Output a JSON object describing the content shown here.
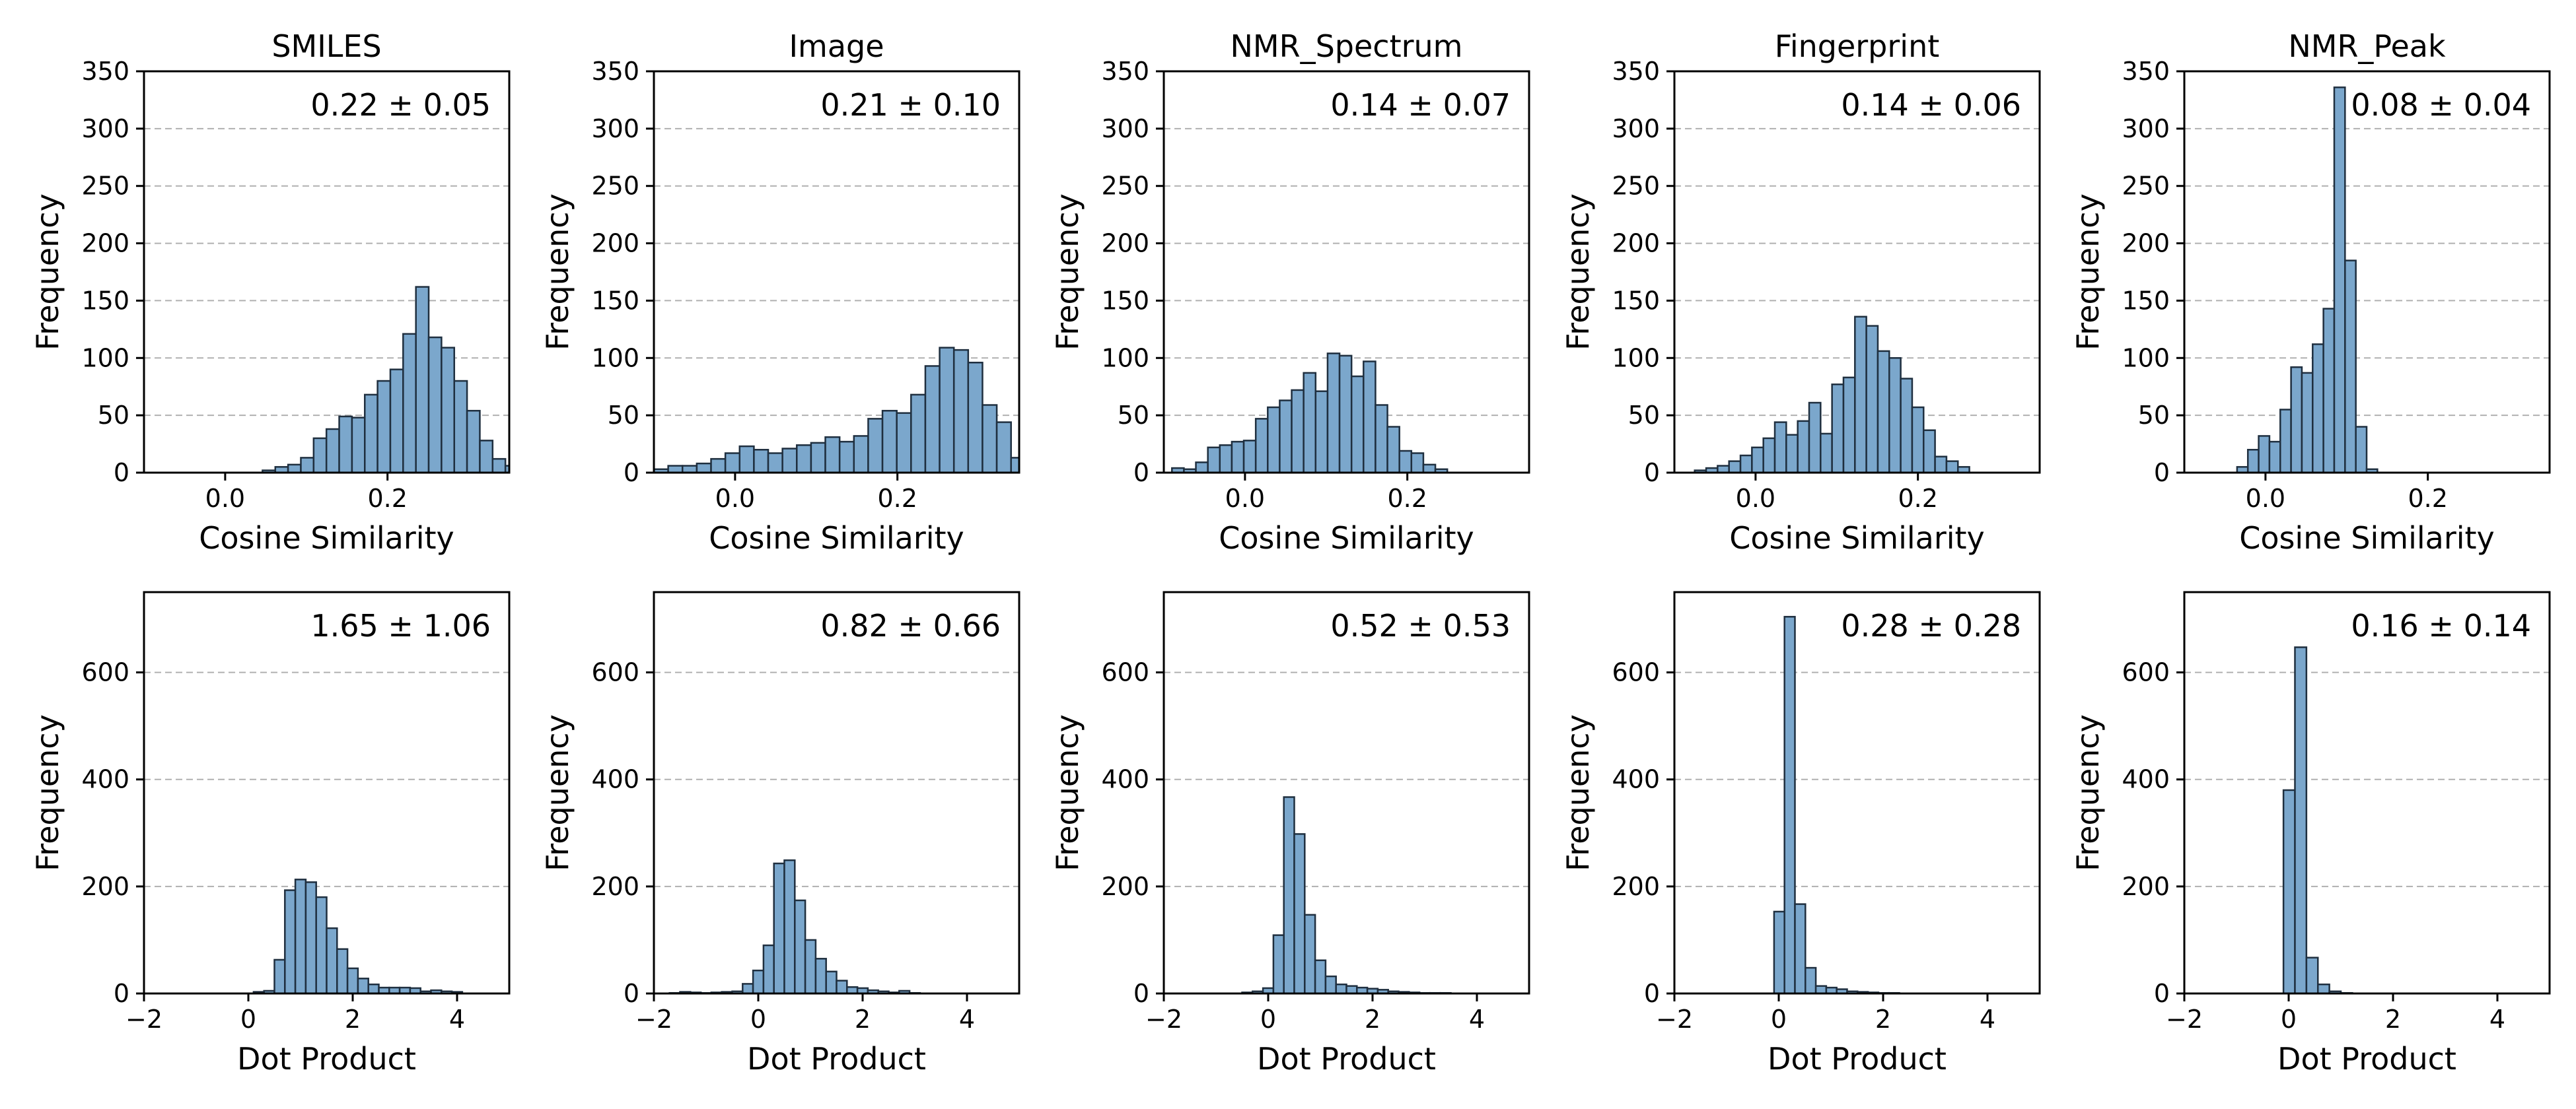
{
  "colors": {
    "bar_fill": "#7ba7cc",
    "bar_edge": "#2b3a4a",
    "grid": "#b0b0b0",
    "background": "#ffffff"
  },
  "chart_data": [
    {
      "type": "bar",
      "row": 0,
      "col": 0,
      "title": "SMILES",
      "xlabel": "Cosine Similarity",
      "ylabel": "Frequency",
      "annotation": "0.22 ± 0.05",
      "xlim": [
        -0.1,
        0.35
      ],
      "ylim": [
        0,
        350
      ],
      "xticks": [
        0.0,
        0.2
      ],
      "xtick_labels": [
        "0.0",
        "0.2"
      ],
      "yticks": [
        0,
        50,
        100,
        150,
        200,
        250,
        300,
        350
      ],
      "ytick_labels": [
        "0",
        "50",
        "100",
        "150",
        "200",
        "250",
        "300",
        "350"
      ],
      "bin_start": 0.046,
      "bin_width": 0.01575,
      "values": [
        2,
        5,
        7,
        13,
        30,
        38,
        49,
        48,
        68,
        80,
        90,
        121,
        162,
        118,
        109,
        80,
        54,
        28,
        12,
        6
      ]
    },
    {
      "type": "bar",
      "row": 0,
      "col": 1,
      "title": "Image",
      "xlabel": "Cosine Similarity",
      "ylabel": "Frequency",
      "annotation": "0.21 ± 0.10",
      "xlim": [
        -0.1,
        0.35
      ],
      "ylim": [
        0,
        350
      ],
      "xticks": [
        0.0,
        0.2
      ],
      "xtick_labels": [
        "0.0",
        "0.2"
      ],
      "yticks": [
        0,
        50,
        100,
        150,
        200,
        250,
        300,
        350
      ],
      "ytick_labels": [
        "0",
        "50",
        "100",
        "150",
        "200",
        "250",
        "300",
        "350"
      ],
      "bin_start": -0.1,
      "bin_width": 0.0176,
      "values": [
        3,
        6,
        6,
        8,
        12,
        17,
        23,
        20,
        17,
        21,
        24,
        26,
        31,
        27,
        32,
        47,
        54,
        52,
        68,
        93,
        109,
        107,
        96,
        59,
        44,
        13
      ]
    },
    {
      "type": "bar",
      "row": 0,
      "col": 2,
      "title": "NMR_Spectrum",
      "xlabel": "Cosine Similarity",
      "ylabel": "Frequency",
      "annotation": "0.14 ± 0.07",
      "xlim": [
        -0.1,
        0.35
      ],
      "ylim": [
        0,
        350
      ],
      "xticks": [
        0.0,
        0.2
      ],
      "xtick_labels": [
        "0.0",
        "0.2"
      ],
      "yticks": [
        0,
        50,
        100,
        150,
        200,
        250,
        300,
        350
      ],
      "ytick_labels": [
        "0",
        "50",
        "100",
        "150",
        "200",
        "250",
        "300",
        "350"
      ],
      "bin_start": -0.09,
      "bin_width": 0.01475,
      "values": [
        4,
        3,
        9,
        22,
        24,
        27,
        28,
        47,
        57,
        63,
        72,
        87,
        71,
        104,
        102,
        84,
        97,
        59,
        40,
        19,
        17,
        7,
        3
      ]
    },
    {
      "type": "bar",
      "row": 0,
      "col": 3,
      "title": "Fingerprint",
      "xlabel": "Cosine Similarity",
      "ylabel": "Frequency",
      "annotation": "0.14 ± 0.06",
      "xlim": [
        -0.1,
        0.35
      ],
      "ylim": [
        0,
        350
      ],
      "xticks": [
        0.0,
        0.2
      ],
      "xtick_labels": [
        "0.0",
        "0.2"
      ],
      "yticks": [
        0,
        50,
        100,
        150,
        200,
        250,
        300,
        350
      ],
      "ytick_labels": [
        "0",
        "50",
        "100",
        "150",
        "200",
        "250",
        "300",
        "350"
      ],
      "bin_start": -0.075,
      "bin_width": 0.0141,
      "values": [
        2,
        4,
        6,
        10,
        15,
        22,
        30,
        44,
        33,
        45,
        61,
        34,
        77,
        83,
        136,
        128,
        106,
        100,
        82,
        57,
        37,
        14,
        10,
        5
      ]
    },
    {
      "type": "bar",
      "row": 0,
      "col": 4,
      "title": "NMR_Peak",
      "xlabel": "Cosine Similarity",
      "ylabel": "Frequency",
      "annotation": "0.08 ± 0.04",
      "xlim": [
        -0.1,
        0.35
      ],
      "ylim": [
        0,
        350
      ],
      "xticks": [
        0.0,
        0.2
      ],
      "xtick_labels": [
        "0.0",
        "0.2"
      ],
      "yticks": [
        0,
        50,
        100,
        150,
        200,
        250,
        300,
        350
      ],
      "ytick_labels": [
        "0",
        "50",
        "100",
        "150",
        "200",
        "250",
        "300",
        "350"
      ],
      "bin_start": -0.035,
      "bin_width": 0.0133,
      "values": [
        5,
        20,
        32,
        27,
        55,
        92,
        87,
        112,
        143,
        336,
        185,
        40,
        3
      ]
    },
    {
      "type": "bar",
      "row": 1,
      "col": 0,
      "title": "",
      "xlabel": "Dot Product",
      "ylabel": "Frequency",
      "annotation": "1.65 ± 1.06",
      "xlim": [
        -2,
        5
      ],
      "ylim": [
        0,
        750
      ],
      "xticks": [
        -2,
        0,
        2,
        4
      ],
      "xtick_labels": [
        "−2",
        "0",
        "2",
        "4"
      ],
      "yticks": [
        0,
        200,
        400,
        600
      ],
      "ytick_labels": [
        "0",
        "200",
        "400",
        "600"
      ],
      "bin_start": 0.1,
      "bin_width": 0.2,
      "values": [
        3,
        5,
        63,
        193,
        213,
        208,
        180,
        122,
        83,
        47,
        28,
        17,
        11,
        11,
        11,
        10,
        4,
        6,
        4,
        3
      ]
    },
    {
      "type": "bar",
      "row": 1,
      "col": 1,
      "title": "",
      "xlabel": "Dot Product",
      "ylabel": "Frequency",
      "annotation": "0.82 ± 0.66",
      "xlim": [
        -2,
        5
      ],
      "ylim": [
        0,
        750
      ],
      "xticks": [
        -2,
        0,
        2,
        4
      ],
      "xtick_labels": [
        "−2",
        "0",
        "2",
        "4"
      ],
      "yticks": [
        0,
        200,
        400,
        600
      ],
      "ytick_labels": [
        "0",
        "200",
        "400",
        "600"
      ],
      "bin_start": -1.7,
      "bin_width": 0.2,
      "values": [
        1,
        3,
        2,
        1,
        2,
        3,
        4,
        18,
        43,
        90,
        243,
        249,
        174,
        100,
        65,
        41,
        24,
        12,
        10,
        6,
        4,
        2,
        5,
        1
      ]
    },
    {
      "type": "bar",
      "row": 1,
      "col": 2,
      "title": "",
      "xlabel": "Dot Product",
      "ylabel": "Frequency",
      "annotation": "0.52 ± 0.53",
      "xlim": [
        -2,
        5
      ],
      "ylim": [
        0,
        750
      ],
      "xticks": [
        -2,
        0,
        2,
        4
      ],
      "xtick_labels": [
        "−2",
        "0",
        "2",
        "4"
      ],
      "yticks": [
        0,
        200,
        400,
        600
      ],
      "ytick_labels": [
        "0",
        "200",
        "400",
        "600"
      ],
      "bin_start": -0.5,
      "bin_width": 0.2,
      "values": [
        2,
        4,
        10,
        109,
        367,
        298,
        147,
        62,
        32,
        17,
        14,
        11,
        9,
        7,
        4,
        3,
        2,
        1,
        1,
        1
      ]
    },
    {
      "type": "bar",
      "row": 1,
      "col": 3,
      "title": "",
      "xlabel": "Dot Product",
      "ylabel": "Frequency",
      "annotation": "0.28 ± 0.28",
      "xlim": [
        -2,
        5
      ],
      "ylim": [
        0,
        750
      ],
      "xticks": [
        -2,
        0,
        2,
        4
      ],
      "xtick_labels": [
        "−2",
        "0",
        "2",
        "4"
      ],
      "yticks": [
        0,
        200,
        400,
        600
      ],
      "ytick_labels": [
        "0",
        "200",
        "400",
        "600"
      ],
      "bin_start": -0.09,
      "bin_width": 0.2,
      "values": [
        153,
        704,
        167,
        48,
        14,
        11,
        8,
        4,
        3,
        2,
        1,
        1
      ]
    },
    {
      "type": "bar",
      "row": 1,
      "col": 4,
      "title": "",
      "xlabel": "Dot Product",
      "ylabel": "Frequency",
      "annotation": "0.16 ± 0.14",
      "xlim": [
        -2,
        5
      ],
      "ylim": [
        0,
        750
      ],
      "xticks": [
        -2,
        0,
        2,
        4
      ],
      "xtick_labels": [
        "−2",
        "0",
        "2",
        "4"
      ],
      "yticks": [
        0,
        200,
        400,
        600
      ],
      "ytick_labels": [
        "0",
        "200",
        "400",
        "600"
      ],
      "bin_start": -0.1,
      "bin_width": 0.22,
      "values": [
        380,
        647,
        67,
        17,
        4,
        1
      ]
    }
  ]
}
